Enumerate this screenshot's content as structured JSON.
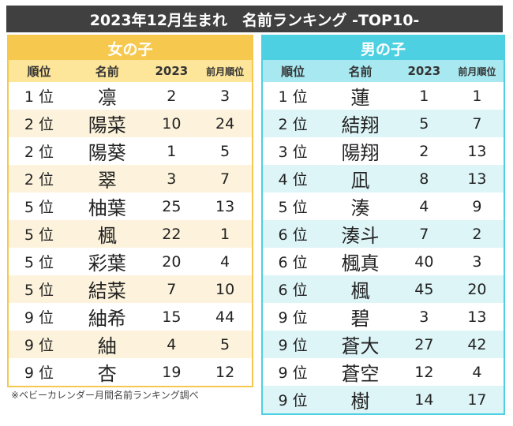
{
  "title": "2023年12月生まれ　名前ランキング -TOP10-",
  "columns": {
    "rank": "順位",
    "name": "名前",
    "year": "2023",
    "prev": "前月順位"
  },
  "girls": {
    "label": "女の子",
    "rows": [
      [
        "1 位",
        "凛",
        "2",
        "3"
      ],
      [
        "2 位",
        "陽菜",
        "10",
        "24"
      ],
      [
        "2 位",
        "陽葵",
        "1",
        "5"
      ],
      [
        "2 位",
        "翠",
        "3",
        "7"
      ],
      [
        "5 位",
        "柚葉",
        "25",
        "13"
      ],
      [
        "5 位",
        "楓",
        "22",
        "1"
      ],
      [
        "5 位",
        "彩葉",
        "20",
        "4"
      ],
      [
        "5 位",
        "結菜",
        "7",
        "10"
      ],
      [
        "9 位",
        "紬希",
        "15",
        "44"
      ],
      [
        "9 位",
        "紬",
        "4",
        "5"
      ],
      [
        "9 位",
        "杏",
        "19",
        "12"
      ]
    ]
  },
  "boys": {
    "label": "男の子",
    "rows": [
      [
        "1 位",
        "蓮",
        "1",
        "1"
      ],
      [
        "2 位",
        "結翔",
        "5",
        "7"
      ],
      [
        "3 位",
        "陽翔",
        "2",
        "13"
      ],
      [
        "4 位",
        "凪",
        "8",
        "13"
      ],
      [
        "5 位",
        "湊",
        "4",
        "9"
      ],
      [
        "6 位",
        "湊斗",
        "7",
        "2"
      ],
      [
        "6 位",
        "楓真",
        "40",
        "3"
      ],
      [
        "6 位",
        "楓",
        "45",
        "20"
      ],
      [
        "9 位",
        "碧",
        "3",
        "13"
      ],
      [
        "9 位",
        "蒼大",
        "27",
        "42"
      ],
      [
        "9 位",
        "蒼空",
        "12",
        "4"
      ],
      [
        "9 位",
        "樹",
        "14",
        "17"
      ]
    ]
  },
  "note": "※ベビーカレンダー月間名前ランキング調べ"
}
